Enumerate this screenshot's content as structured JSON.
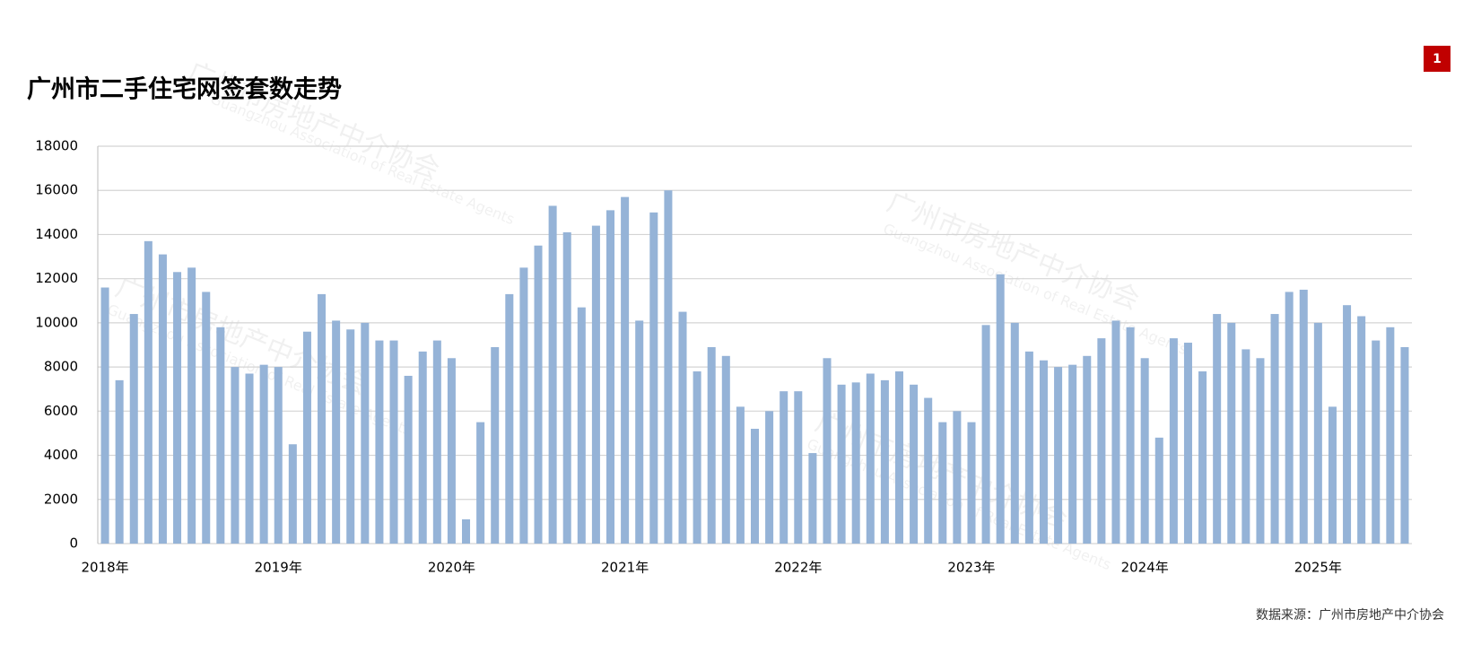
{
  "chart_data": {
    "type": "bar",
    "title": "广州市二手住宅网签套数走势",
    "page_number": "1",
    "source": "数据来源：广州市房地产中介协会",
    "watermark": {
      "cn": "广州市房地产中介协会",
      "en": "Guangzhou Association of Real Estate Agents"
    },
    "categories": [
      "2018年",
      null,
      null,
      null,
      null,
      null,
      null,
      null,
      null,
      null,
      null,
      null,
      "2019年",
      null,
      null,
      null,
      null,
      null,
      null,
      null,
      null,
      null,
      null,
      null,
      "2020年",
      null,
      null,
      null,
      null,
      null,
      null,
      null,
      null,
      null,
      null,
      null,
      "2021年",
      null,
      null,
      null,
      null,
      null,
      null,
      null,
      null,
      null,
      null,
      null,
      "2022年",
      null,
      null,
      null,
      null,
      null,
      null,
      null,
      null,
      null,
      null,
      null,
      "2023年",
      null,
      null,
      null,
      null,
      null,
      null,
      null,
      null,
      null,
      null,
      null,
      "2024年",
      null,
      null,
      null,
      null,
      null,
      null,
      null,
      null,
      null,
      null,
      null,
      "2025年",
      null,
      null,
      null,
      null,
      null,
      null
    ],
    "values": [
      11600,
      7400,
      10400,
      13700,
      13100,
      12300,
      12500,
      11400,
      9800,
      8000,
      7700,
      8100,
      8000,
      4500,
      9600,
      11300,
      10100,
      9700,
      10000,
      9200,
      9200,
      7600,
      8700,
      9200,
      8400,
      1100,
      5500,
      8900,
      11300,
      12500,
      13500,
      15300,
      14100,
      10700,
      14400,
      15100,
      15700,
      10100,
      15000,
      16000,
      10500,
      7800,
      8900,
      8500,
      6200,
      5200,
      6000,
      6900,
      6900,
      4100,
      8400,
      7200,
      7300,
      7700,
      7400,
      7800,
      7200,
      6600,
      5500,
      6000,
      5500,
      9900,
      12200,
      10000,
      8700,
      8300,
      8000,
      8100,
      8500,
      9300,
      10100,
      9800,
      8400,
      4800,
      9300,
      9100,
      7800,
      10400,
      10000,
      8800,
      8400,
      10400,
      11400,
      11500,
      10000,
      6200,
      10800,
      10300,
      9200,
      9800,
      8900
    ],
    "color": "#95b3d7",
    "ylim": [
      0,
      18000
    ],
    "yticks": [
      0,
      2000,
      4000,
      6000,
      8000,
      10000,
      12000,
      14000,
      16000,
      18000
    ],
    "grid": true
  }
}
